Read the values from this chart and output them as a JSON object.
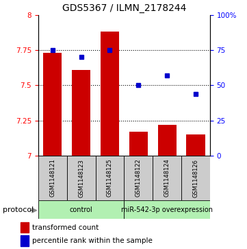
{
  "title": "GDS5367 / ILMN_2178244",
  "samples": [
    "GSM1148121",
    "GSM1148123",
    "GSM1148125",
    "GSM1148122",
    "GSM1148124",
    "GSM1148126"
  ],
  "bar_values": [
    7.73,
    7.61,
    7.88,
    7.17,
    7.22,
    7.15
  ],
  "dot_values": [
    75,
    70,
    75,
    50,
    57,
    44
  ],
  "bar_color": "#cc0000",
  "dot_color": "#0000cc",
  "ylim_left": [
    7.0,
    8.0
  ],
  "ylim_right": [
    0,
    100
  ],
  "yticks_left": [
    7.0,
    7.25,
    7.5,
    7.75,
    8.0
  ],
  "yticks_right": [
    0,
    25,
    50,
    75,
    100
  ],
  "grid_lines": [
    7.25,
    7.5,
    7.75
  ],
  "groups": [
    {
      "label": "control",
      "start": 0,
      "end": 2,
      "color": "#b2f0b2"
    },
    {
      "label": "miR-542-3p overexpression",
      "start": 3,
      "end": 5,
      "color": "#b2f0b2"
    }
  ],
  "protocol_label": "protocol",
  "legend_bar_label": "transformed count",
  "legend_dot_label": "percentile rank within the sample",
  "sample_box_color": "#cccccc",
  "title_fontsize": 10,
  "tick_fontsize": 7.5,
  "sample_fontsize": 6,
  "group_fontsize": 7,
  "legend_fontsize": 7.5
}
